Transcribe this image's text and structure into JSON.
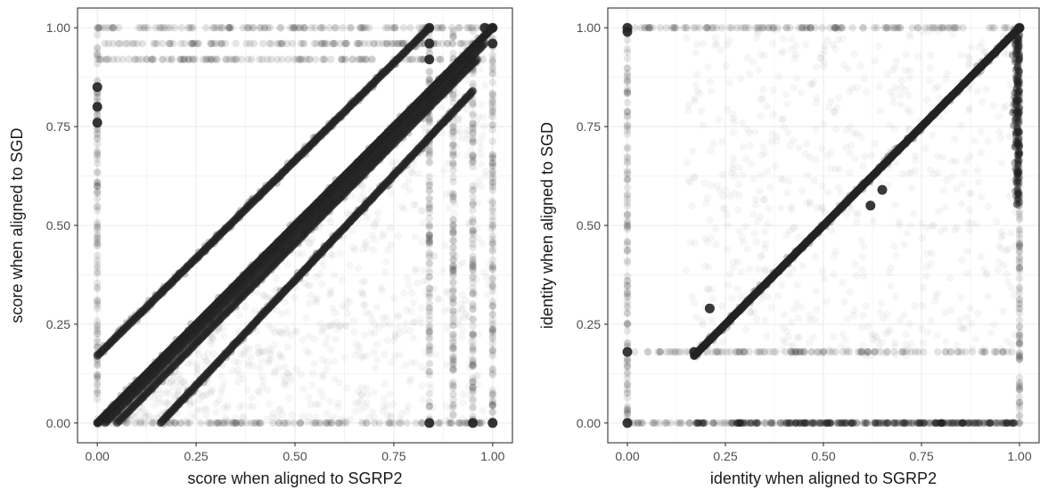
{
  "chart_data": [
    {
      "type": "scatter",
      "title": "",
      "xlabel": "score when aligned to SGRP2",
      "ylabel": "score when aligned to SGD",
      "xlim": [
        -0.05,
        1.05
      ],
      "ylim": [
        -0.05,
        1.05
      ],
      "x_ticks": [
        0,
        0.25,
        0.5,
        0.75,
        1
      ],
      "y_ticks": [
        0,
        0.25,
        0.5,
        0.75,
        1
      ],
      "x_tick_labels": [
        "0.00",
        "0.25",
        "0.50",
        "0.75",
        "1.00"
      ],
      "y_tick_labels": [
        "0.00",
        "0.25",
        "0.50",
        "0.75",
        "1.00"
      ],
      "grid": true,
      "point_color": "#222222",
      "point_alpha": 0.05,
      "series": [
        {
          "description_points": "dense diagonal bands",
          "bands": [
            {
              "from": [
                0.0,
                0.0
              ],
              "to": [
                1.0,
                1.0
              ]
            },
            {
              "from": [
                0.02,
                0.0
              ],
              "to": [
                0.98,
                0.96
              ]
            },
            {
              "from": [
                0.05,
                0.0
              ],
              "to": [
                0.96,
                0.92
              ]
            },
            {
              "from": [
                0.16,
                0.0
              ],
              "to": [
                0.95,
                0.84
              ]
            },
            {
              "from": [
                0.0,
                0.17
              ],
              "to": [
                0.84,
                1.0
              ]
            }
          ]
        },
        {
          "vertical_lines_x": [
            0.0,
            0.84,
            0.9,
            0.95,
            1.0
          ]
        },
        {
          "horizontal_lines_y": [
            0.0,
            1.0,
            0.96,
            0.92
          ]
        },
        {
          "highlight_points": [
            {
              "x": 0.0,
              "y": 0.85
            },
            {
              "x": 0.0,
              "y": 0.8
            },
            {
              "x": 0.0,
              "y": 0.76
            },
            {
              "x": 0.84,
              "y": 1.0
            },
            {
              "x": 0.84,
              "y": 0.96
            },
            {
              "x": 0.84,
              "y": 0.92
            },
            {
              "x": 0.84,
              "y": 0.0
            },
            {
              "x": 0.95,
              "y": 0.0
            },
            {
              "x": 1.0,
              "y": 0.0
            },
            {
              "x": 1.0,
              "y": 1.0
            },
            {
              "x": 1.0,
              "y": 0.96
            },
            {
              "x": 0.98,
              "y": 1.0
            }
          ]
        }
      ]
    },
    {
      "type": "scatter",
      "title": "",
      "xlabel": "identity when aligned to SGRP2",
      "ylabel": "identity when aligned to SGD",
      "xlim": [
        -0.05,
        1.05
      ],
      "ylim": [
        -0.05,
        1.05
      ],
      "x_ticks": [
        0,
        0.25,
        0.5,
        0.75,
        1
      ],
      "y_ticks": [
        0,
        0.25,
        0.5,
        0.75,
        1
      ],
      "x_tick_labels": [
        "0.00",
        "0.25",
        "0.50",
        "0.75",
        "1.00"
      ],
      "y_tick_labels": [
        "0.00",
        "0.25",
        "0.50",
        "0.75",
        "1.00"
      ],
      "grid": true,
      "point_color": "#222222",
      "point_alpha": 0.05,
      "series": [
        {
          "bands": [
            {
              "from": [
                0.17,
                0.17
              ],
              "to": [
                1.0,
                1.0
              ]
            }
          ]
        },
        {
          "vertical_lines_x": [
            0.0,
            1.0
          ]
        },
        {
          "horizontal_lines_y": [
            0.0,
            0.18,
            1.0
          ]
        },
        {
          "highlight_points": [
            {
              "x": 0.0,
              "y": 1.0
            },
            {
              "x": 0.0,
              "y": 0.99
            },
            {
              "x": 0.0,
              "y": 0.18
            },
            {
              "x": 0.0,
              "y": 0.0
            },
            {
              "x": 0.17,
              "y": 0.18
            },
            {
              "x": 0.21,
              "y": 0.29
            },
            {
              "x": 0.62,
              "y": 0.55
            },
            {
              "x": 0.65,
              "y": 0.59
            },
            {
              "x": 1.0,
              "y": 1.0
            }
          ]
        }
      ]
    }
  ]
}
